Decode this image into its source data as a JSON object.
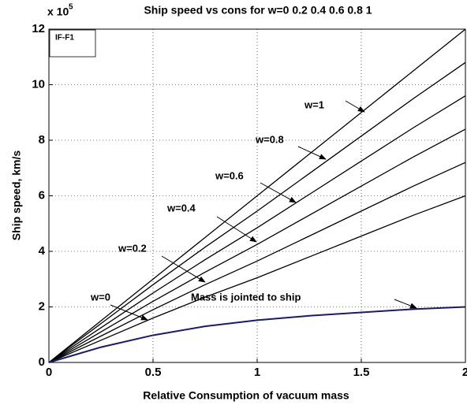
{
  "chart_data": {
    "type": "line",
    "title": "Ship speed vs cons for w=0  0.2  0.4  0.6 0.8 1",
    "x_label": "Relative Consumption of vacuum mass",
    "y_label": "Ship speed, km/s",
    "y_exponent_base": "x 10",
    "y_exponent": "5",
    "legend_box": "IF-F1",
    "x": [
      0,
      0.25,
      0.5,
      0.75,
      1,
      1.25,
      1.5,
      1.75,
      2
    ],
    "series": [
      {
        "name": "w=0",
        "color": "#000000",
        "values": [
          0,
          0.8,
          1.6,
          2.35,
          3.05,
          3.8,
          4.55,
          5.3,
          6.0
        ]
      },
      {
        "name": "w=0.2",
        "color": "#000000",
        "values": [
          0,
          0.95,
          1.9,
          2.8,
          3.65,
          4.55,
          5.45,
          6.35,
          7.2
        ]
      },
      {
        "name": "w=0.4",
        "color": "#000000",
        "values": [
          0,
          1.1,
          2.2,
          3.25,
          4.25,
          5.3,
          6.35,
          7.4,
          8.4
        ]
      },
      {
        "name": "w=0.6",
        "color": "#000000",
        "values": [
          0,
          1.25,
          2.5,
          3.7,
          4.85,
          6.05,
          7.25,
          8.45,
          9.6
        ]
      },
      {
        "name": "w=0.8",
        "color": "#000000",
        "values": [
          0,
          1.4,
          2.8,
          4.15,
          5.45,
          6.8,
          8.15,
          9.5,
          10.8
        ]
      },
      {
        "name": "w=1",
        "color": "#000000",
        "values": [
          0,
          1.5,
          3.0,
          4.5,
          6.0,
          7.5,
          9.0,
          10.5,
          12.0
        ]
      },
      {
        "name": "Mass is jointed to ship",
        "color": "#1a1a6e",
        "values": [
          0,
          0.55,
          0.98,
          1.3,
          1.52,
          1.68,
          1.8,
          1.92,
          2.0
        ]
      }
    ],
    "xlim": [
      0,
      2
    ],
    "xticks": [
      0,
      0.5,
      1,
      1.5,
      2
    ],
    "ylim": [
      0,
      12
    ],
    "yticks": [
      0,
      2,
      4,
      6,
      8,
      10,
      12
    ],
    "grid": true
  }
}
